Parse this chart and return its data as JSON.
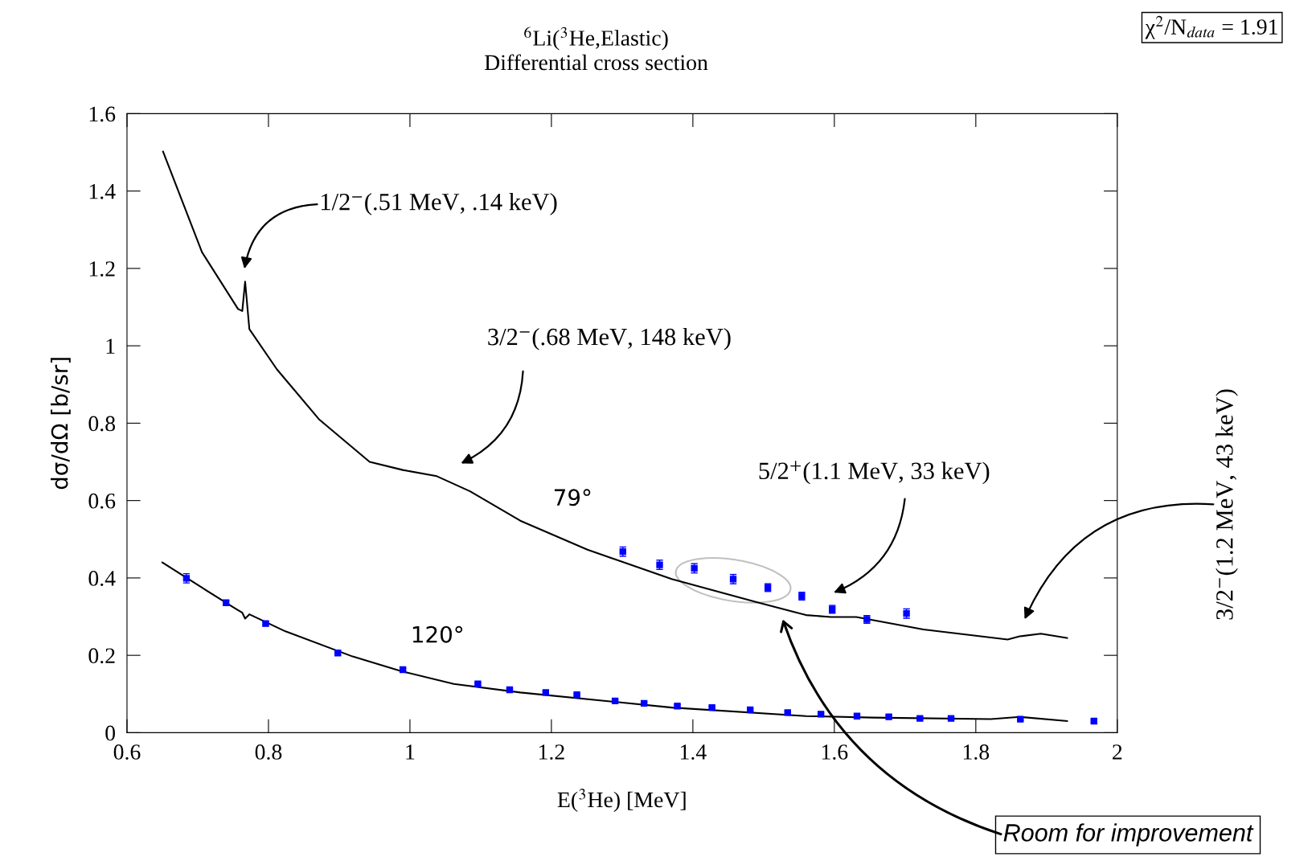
{
  "chart_data": {
    "type": "scatter",
    "title": "$^{6}$Li($^{3}$He,Elastic)",
    "subtitle": "Differential cross section",
    "xlabel": "E($^{3}$He) [MeV]",
    "ylabel": "dσ/dΩ [b/sr]",
    "xlim": [
      0.6,
      2
    ],
    "ylim": [
      0,
      1.6
    ],
    "xticks": [
      0.6,
      0.8,
      1,
      1.2,
      1.4,
      1.6,
      1.8,
      2
    ],
    "yticks": [
      0,
      0.2,
      0.4,
      0.6,
      0.8,
      1,
      1.2,
      1.4,
      1.6
    ],
    "grid": false,
    "marker": "square",
    "series": [
      {
        "color": "#0000ff",
        "x": [
          1.301,
          1.353,
          1.402,
          1.457,
          1.506,
          1.554,
          1.597,
          1.646,
          1.702
        ],
        "values": [
          0.468,
          0.434,
          0.425,
          0.397,
          0.375,
          0.353,
          0.319,
          0.293,
          0.308
        ],
        "errors": [
          0.012,
          0.012,
          0.012,
          0.012,
          0.01,
          0.01,
          0.01,
          0.01,
          0.012
        ]
      },
      {
        "color": "#0000ff",
        "x": [
          0.684,
          0.74,
          0.796,
          0.898,
          0.99,
          1.096,
          1.141,
          1.192,
          1.236,
          1.29,
          1.331,
          1.378,
          1.427,
          1.481,
          1.534,
          1.581,
          1.632,
          1.677,
          1.721,
          1.765,
          1.863,
          1.967
        ],
        "values": [
          0.399,
          0.336,
          0.282,
          0.206,
          0.163,
          0.126,
          0.111,
          0.104,
          0.098,
          0.082,
          0.076,
          0.069,
          0.065,
          0.059,
          0.052,
          0.048,
          0.043,
          0.041,
          0.037,
          0.037,
          0.035,
          0.03
        ],
        "errors": [
          0.012,
          0.005,
          0.005,
          0.006,
          0.004,
          0.003,
          0.003,
          0.003,
          0.003,
          0.003,
          0.003,
          0.003,
          0.003,
          0.003,
          0.003,
          0.003,
          0.003,
          0.003,
          0.003,
          0.003,
          0.003,
          0.003
        ]
      },
      {
        "type": "line",
        "color": "#000000",
        "marker": "none",
        "x": [
          0.651,
          0.706,
          0.757,
          0.763,
          0.767,
          0.773,
          0.812,
          0.872,
          0.943,
          0.99,
          1.038,
          1.085,
          1.156,
          1.251,
          1.37,
          1.489,
          1.56,
          1.595,
          1.631,
          1.726,
          1.845,
          1.862,
          1.892,
          1.929
        ],
        "values": [
          1.502,
          1.242,
          1.095,
          1.09,
          1.166,
          1.043,
          0.939,
          0.809,
          0.7,
          0.679,
          0.663,
          0.624,
          0.548,
          0.473,
          0.397,
          0.338,
          0.304,
          0.299,
          0.299,
          0.267,
          0.241,
          0.249,
          0.256,
          0.245
        ]
      },
      {
        "type": "line",
        "color": "#000000",
        "marker": "none",
        "x": [
          0.65,
          0.706,
          0.753,
          0.763,
          0.767,
          0.773,
          0.824,
          0.919,
          0.99,
          1.062,
          1.156,
          1.37,
          1.56,
          1.655,
          1.821,
          1.862,
          1.929
        ],
        "values": [
          0.44,
          0.375,
          0.321,
          0.31,
          0.295,
          0.306,
          0.262,
          0.197,
          0.158,
          0.126,
          0.104,
          0.065,
          0.043,
          0.039,
          0.035,
          0.041,
          0.03
        ]
      }
    ],
    "annotations": [
      "1/2$^{−}$(.51 MeV, .14 keV)",
      "3/2$^{−}$(.68 MeV, 148 keV)",
      "5/2$^{+}$(1.1 MeV, 33 keV)",
      "3/2$^{−}$(1.2 MeV, 43 keV)",
      "Room for improvement",
      "79°",
      "120°",
      "χ$^{2}$/N$_{data}$ = 1.91"
    ]
  }
}
